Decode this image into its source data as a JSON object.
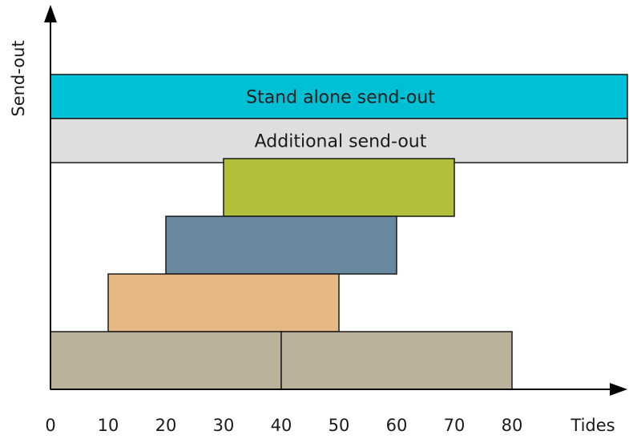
{
  "chart_data": {
    "type": "bar",
    "orientation": "horizontal-range",
    "title": "",
    "xlabel": "Tides",
    "ylabel": "Send-out",
    "xlim": [
      0,
      80
    ],
    "x_ticks": [
      "0",
      "10",
      "20",
      "30",
      "40",
      "50",
      "60",
      "70",
      "80"
    ],
    "grid": false,
    "bands": [
      {
        "label": "Stand alone send-out",
        "x_start": 0,
        "x_end": 100,
        "color": "#00c0d6"
      },
      {
        "label": "Additional send-out",
        "x_start": 0,
        "x_end": 100,
        "color": "#dedede"
      }
    ],
    "bars": [
      {
        "x_start": 30,
        "x_end": 70,
        "level": 4,
        "color": "#b2bf3a"
      },
      {
        "x_start": 20,
        "x_end": 60,
        "level": 3,
        "color": "#6889a0"
      },
      {
        "x_start": 10,
        "x_end": 50,
        "level": 2,
        "color": "#e6b884"
      },
      {
        "x_start": 0,
        "x_end": 40,
        "level": 1,
        "color": "#bbb29b"
      },
      {
        "x_start": 40,
        "x_end": 80,
        "level": 1,
        "color": "#bbb29b"
      }
    ]
  }
}
